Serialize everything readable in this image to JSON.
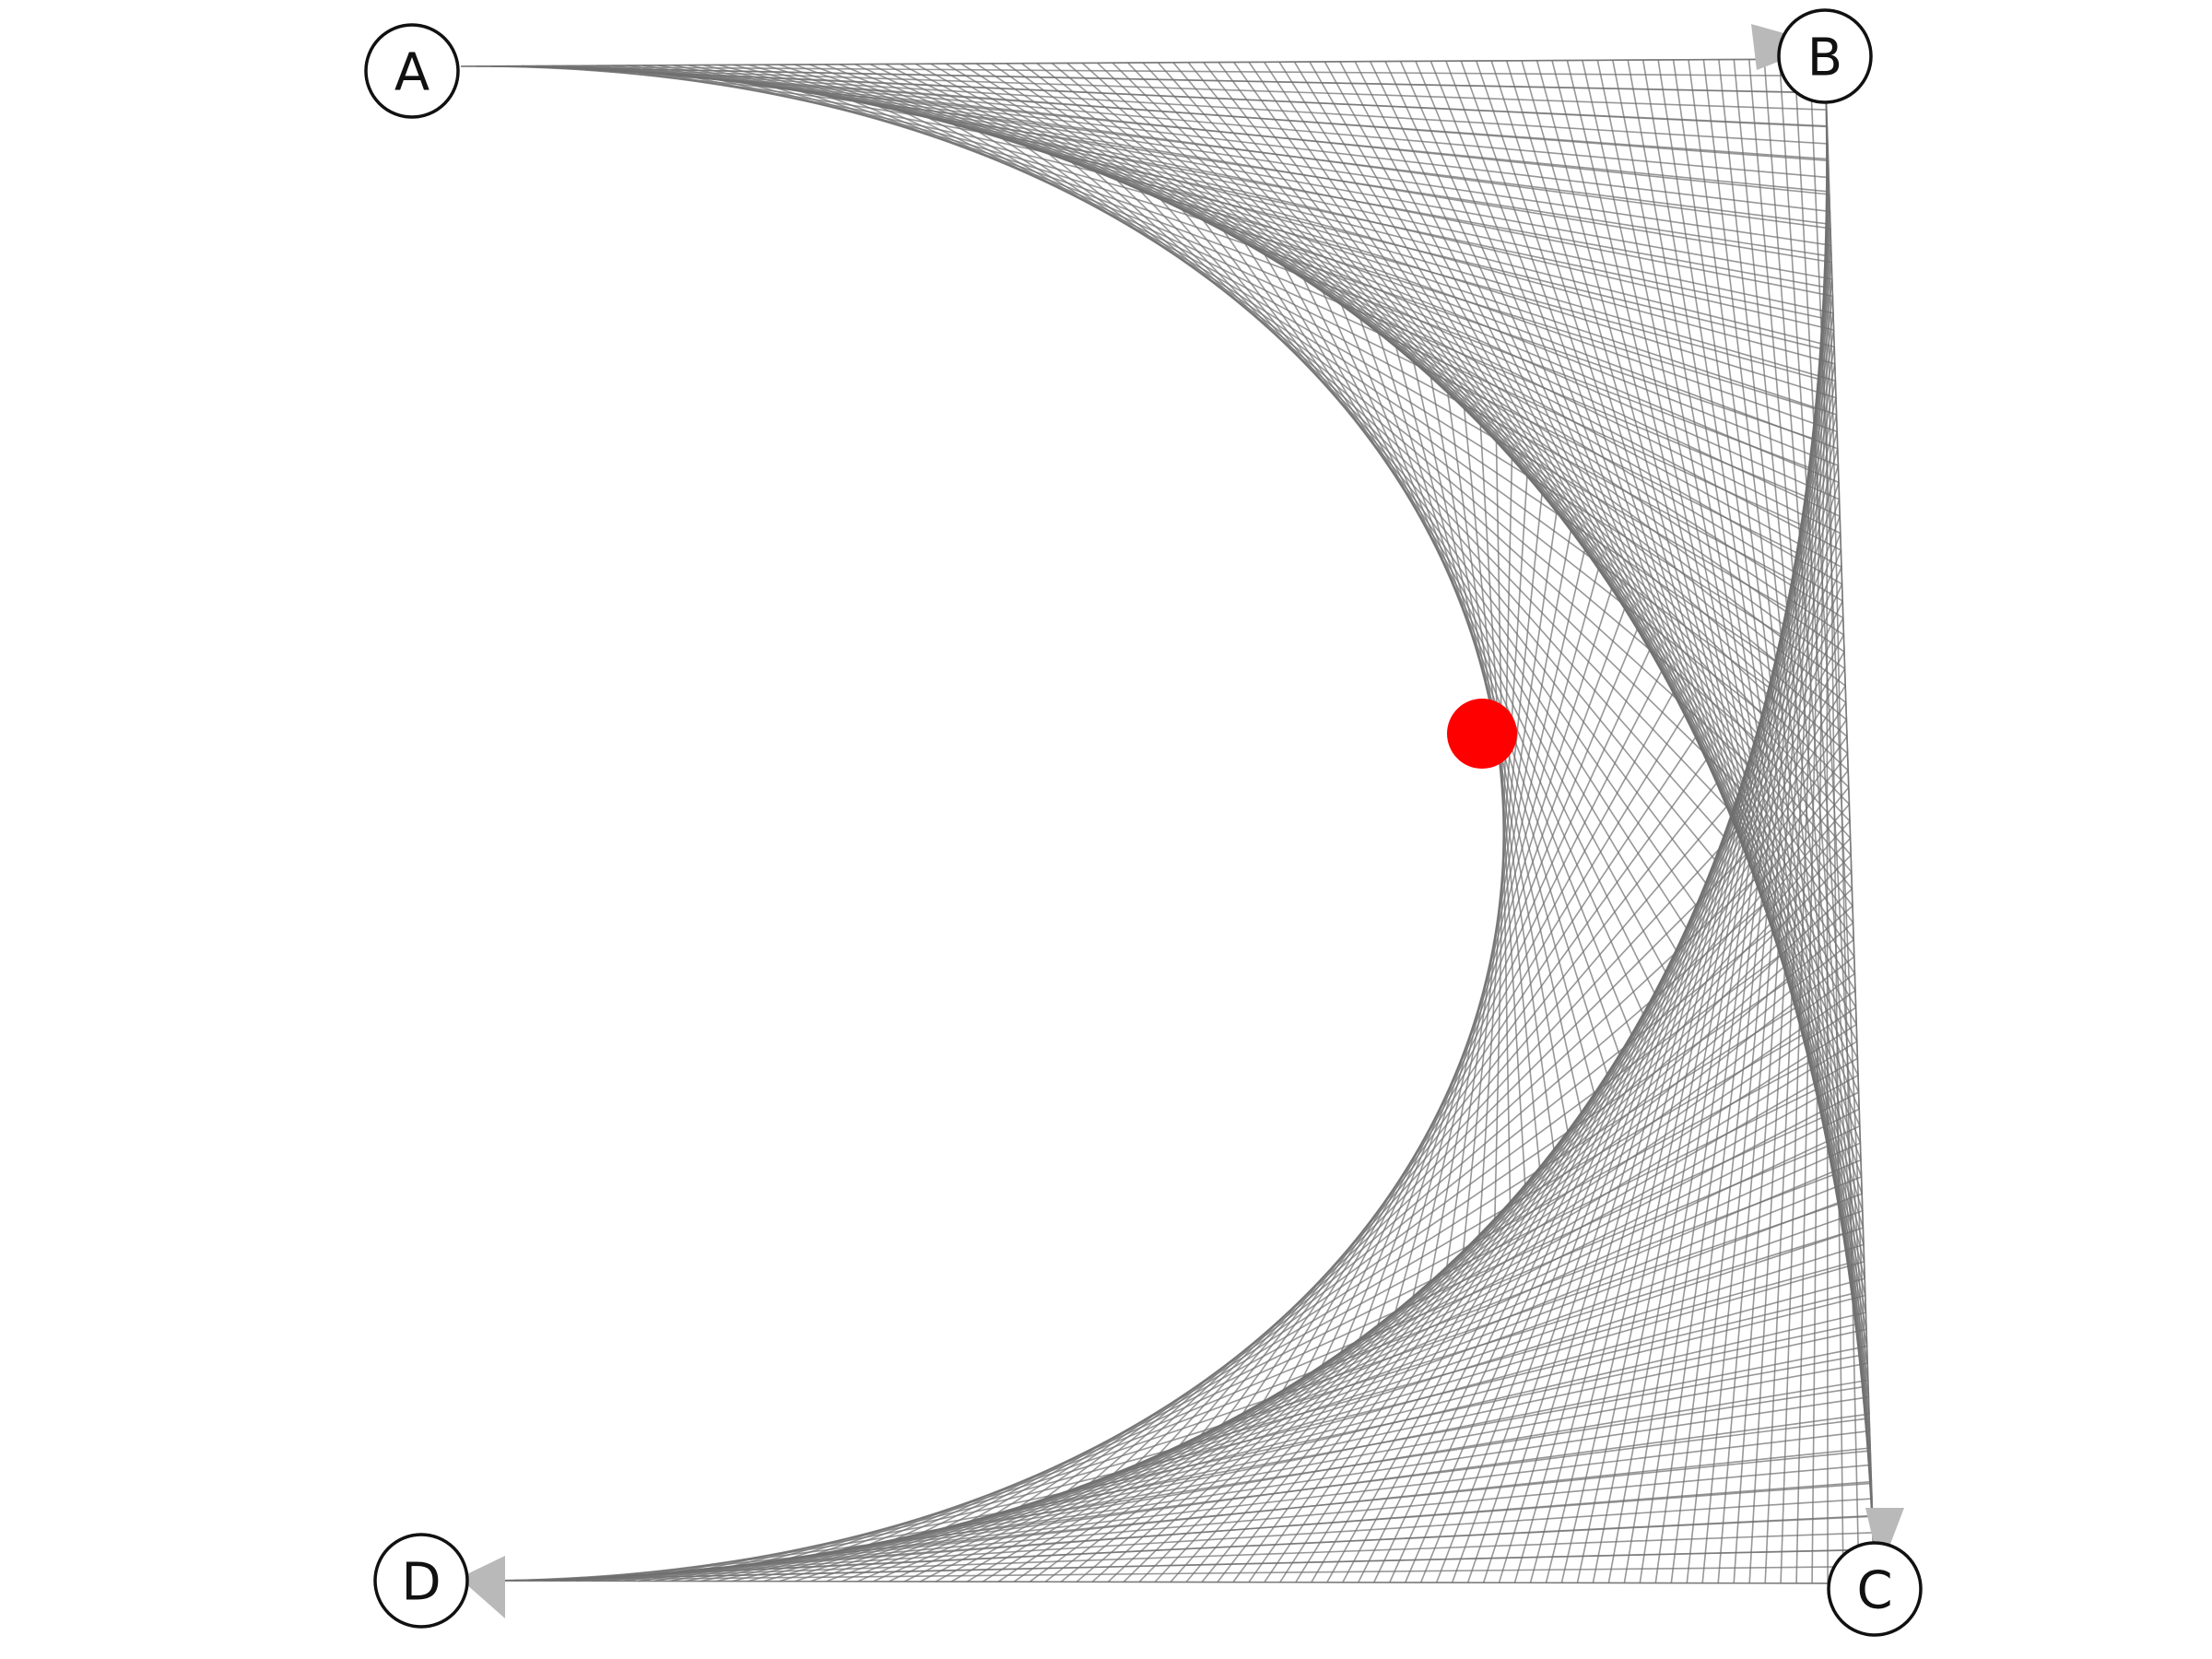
{
  "diagram": {
    "nodes": [
      {
        "id": "A",
        "label": "A"
      },
      {
        "id": "B",
        "label": "B"
      },
      {
        "id": "C",
        "label": "C"
      },
      {
        "id": "D",
        "label": "D"
      }
    ],
    "edges": [
      {
        "from": "A",
        "to": "B"
      },
      {
        "from": "B",
        "to": "C"
      },
      {
        "from": "C",
        "to": "D"
      }
    ],
    "colors": {
      "string_lines": "#6f6f6f",
      "arrow_heads": "#b9b9b9",
      "node_stroke": "#111111",
      "node_fill": "#ffffff",
      "highlight_point": "#ff0000"
    }
  }
}
